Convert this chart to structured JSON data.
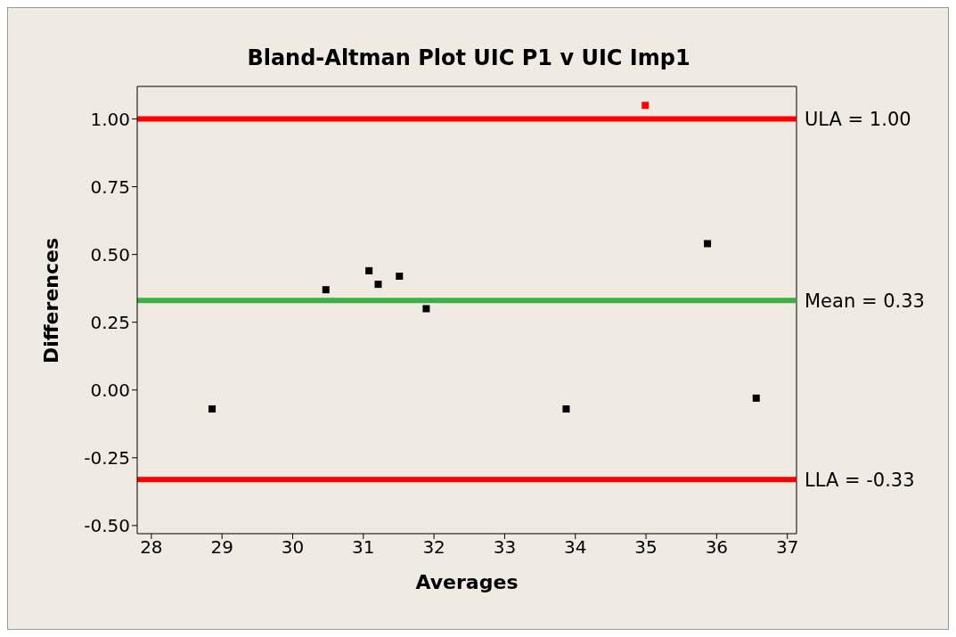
{
  "chart_data": {
    "type": "scatter",
    "title": "Bland-Altman Plot UIC P1 v UIC Imp1",
    "xlabel": "Averages",
    "ylabel": "Differences",
    "xlim": [
      27.8,
      37.13
    ],
    "xticks": [
      28,
      29,
      30,
      31,
      32,
      33,
      34,
      35,
      36,
      37
    ],
    "ylim": [
      -0.53,
      1.12
    ],
    "yticks": [
      {
        "value": -0.5,
        "label": "-0.50"
      },
      {
        "value": -0.25,
        "label": "-0.25"
      },
      {
        "value": 0,
        "label": "0.00"
      },
      {
        "value": 0.25,
        "label": "0.25"
      },
      {
        "value": 0.5,
        "label": "0.50"
      },
      {
        "value": 0.75,
        "label": "0.75"
      },
      {
        "value": 1,
        "label": "1.00"
      }
    ],
    "series": [
      {
        "color": "#000000",
        "x": [
          28.86,
          30.47,
          31.08,
          31.21,
          31.51,
          31.89,
          33.87,
          35.87,
          36.56
        ],
        "values": [
          -0.07,
          0.37,
          0.44,
          0.39,
          0.42,
          0.3,
          -0.07,
          0.54,
          -0.03
        ]
      },
      {
        "color": "#ff0000",
        "x": [
          34.99
        ],
        "values": [
          1.05
        ]
      }
    ],
    "ref_lines": [
      {
        "axis": "y",
        "value": 1,
        "label": "ULA = 1.00",
        "color": "#ff0000"
      },
      {
        "axis": "y",
        "value": 0.33,
        "label": "Mean = 0.33",
        "color": "#3cb043"
      },
      {
        "axis": "y",
        "value": -0.33,
        "label": "LLA = -0.33",
        "color": "#ff0000"
      }
    ],
    "marker": "square",
    "grid": false,
    "legend": false
  }
}
